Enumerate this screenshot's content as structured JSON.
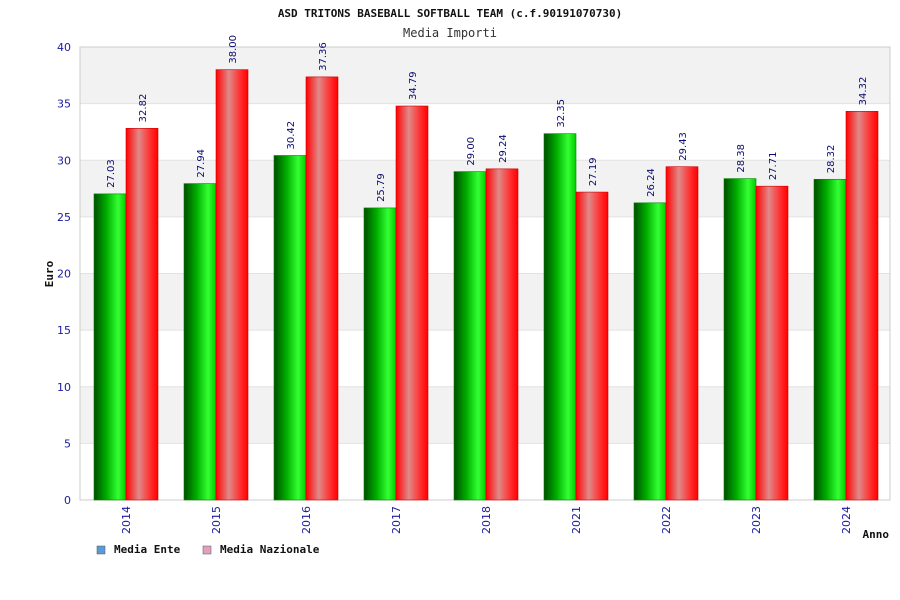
{
  "chart_data": {
    "type": "bar",
    "title": "ASD TRITONS BASEBALL SOFTBALL TEAM (c.f.90191070730)",
    "subtitle": "Media Importi",
    "xlabel": "Anno",
    "ylabel": "Euro",
    "ylim": [
      0,
      40
    ],
    "yticks": [
      "0",
      "5",
      "10",
      "15",
      "20",
      "25",
      "30",
      "35",
      "40"
    ],
    "categories": [
      "2014",
      "2015",
      "2016",
      "2017",
      "2018",
      "2021",
      "2022",
      "2023",
      "2024"
    ],
    "series": [
      {
        "name": "Media Ente",
        "values": [
          27.03,
          27.94,
          30.42,
          25.79,
          29.0,
          32.35,
          26.24,
          28.38,
          28.32
        ],
        "labels": [
          "27.03",
          "27.94",
          "30.42",
          "25.79",
          "29.00",
          "32.35",
          "26.24",
          "28.38",
          "28.32"
        ],
        "color": "#00aa00"
      },
      {
        "name": "Media Nazionale",
        "values": [
          32.82,
          38.0,
          37.36,
          34.79,
          29.24,
          27.19,
          29.43,
          27.71,
          34.32
        ],
        "labels": [
          "32.82",
          "38.00",
          "37.36",
          "34.79",
          "29.24",
          "27.19",
          "29.43",
          "27.71",
          "34.32"
        ],
        "color": "#ff1a1a"
      }
    ],
    "legend": {
      "position": "bottom-left",
      "swatch_colors": [
        "#5b9bd5",
        "#e0a0c0"
      ]
    },
    "grid": true,
    "grid_style": "alternating horizontal bands"
  }
}
